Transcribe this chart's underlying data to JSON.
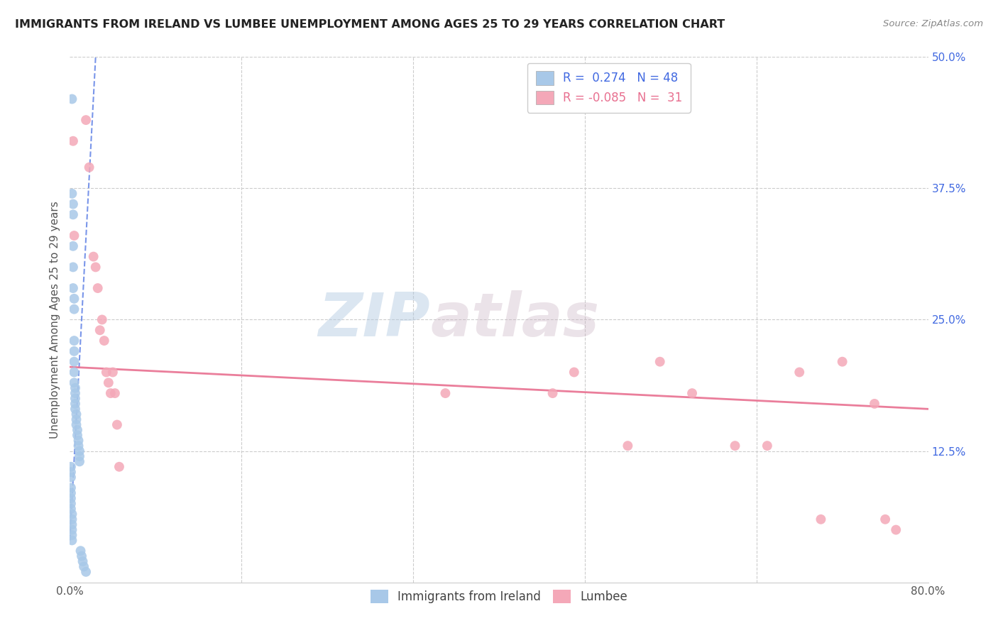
{
  "title": "IMMIGRANTS FROM IRELAND VS LUMBEE UNEMPLOYMENT AMONG AGES 25 TO 29 YEARS CORRELATION CHART",
  "source": "Source: ZipAtlas.com",
  "ylabel": "Unemployment Among Ages 25 to 29 years",
  "xlim": [
    0,
    0.8
  ],
  "ylim": [
    0,
    0.5
  ],
  "yticks_right": [
    0.0,
    0.125,
    0.25,
    0.375,
    0.5
  ],
  "ytick_right_labels": [
    "",
    "12.5%",
    "25.0%",
    "37.5%",
    "50.0%"
  ],
  "legend_R_blue": "0.274",
  "legend_N_blue": "48",
  "legend_R_pink": "-0.085",
  "legend_N_pink": "31",
  "blue_color": "#A8C8E8",
  "pink_color": "#F4A8B8",
  "blue_line_color": "#4169E1",
  "pink_line_color": "#E87090",
  "watermark_zip": "ZIP",
  "watermark_atlas": "atlas",
  "blue_scatter_x": [
    0.002,
    0.002,
    0.003,
    0.003,
    0.003,
    0.003,
    0.003,
    0.004,
    0.004,
    0.004,
    0.004,
    0.004,
    0.004,
    0.004,
    0.005,
    0.005,
    0.005,
    0.005,
    0.005,
    0.006,
    0.006,
    0.006,
    0.007,
    0.007,
    0.008,
    0.008,
    0.009,
    0.009,
    0.009,
    0.001,
    0.001,
    0.001,
    0.001,
    0.001,
    0.001,
    0.001,
    0.001,
    0.002,
    0.002,
    0.002,
    0.002,
    0.002,
    0.002,
    0.01,
    0.011,
    0.012,
    0.013,
    0.015
  ],
  "blue_scatter_y": [
    0.46,
    0.37,
    0.36,
    0.35,
    0.32,
    0.3,
    0.28,
    0.27,
    0.26,
    0.23,
    0.22,
    0.21,
    0.2,
    0.19,
    0.185,
    0.18,
    0.175,
    0.17,
    0.165,
    0.16,
    0.155,
    0.15,
    0.145,
    0.14,
    0.135,
    0.13,
    0.125,
    0.12,
    0.115,
    0.11,
    0.105,
    0.1,
    0.09,
    0.085,
    0.08,
    0.075,
    0.07,
    0.065,
    0.06,
    0.055,
    0.05,
    0.045,
    0.04,
    0.03,
    0.025,
    0.02,
    0.015,
    0.01
  ],
  "pink_scatter_x": [
    0.003,
    0.004,
    0.015,
    0.018,
    0.022,
    0.024,
    0.026,
    0.028,
    0.03,
    0.032,
    0.034,
    0.036,
    0.038,
    0.04,
    0.042,
    0.044,
    0.046,
    0.35,
    0.45,
    0.47,
    0.52,
    0.55,
    0.58,
    0.62,
    0.65,
    0.68,
    0.7,
    0.72,
    0.75,
    0.76,
    0.77
  ],
  "pink_scatter_y": [
    0.42,
    0.33,
    0.44,
    0.395,
    0.31,
    0.3,
    0.28,
    0.24,
    0.25,
    0.23,
    0.2,
    0.19,
    0.18,
    0.2,
    0.18,
    0.15,
    0.11,
    0.18,
    0.18,
    0.2,
    0.13,
    0.21,
    0.18,
    0.13,
    0.13,
    0.2,
    0.06,
    0.21,
    0.17,
    0.06,
    0.05
  ],
  "blue_trend_x": [
    0.0,
    0.024
  ],
  "blue_trend_y": [
    0.04,
    0.5
  ],
  "pink_trend_x": [
    0.0,
    0.8
  ],
  "pink_trend_y": [
    0.205,
    0.165
  ]
}
